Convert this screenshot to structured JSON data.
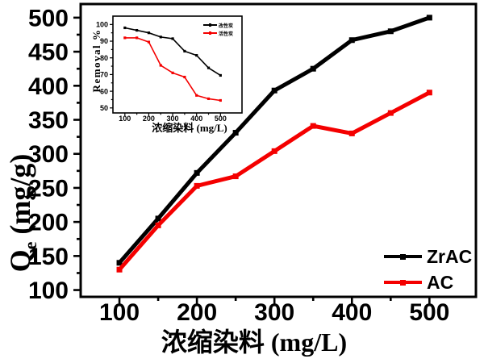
{
  "figure": {
    "background": "#ffffff",
    "accent_black": "#000000",
    "accent_red": "#f40000"
  },
  "chart_data": [
    {
      "id": "main",
      "type": "line",
      "xlabel": "浓缩染料 (mg/L)",
      "ylabel": "Qe (mg/g)",
      "ylabel_parts": {
        "base": "Q",
        "sub": "e",
        "unit": " (mg/g)"
      },
      "x": [
        100,
        150,
        200,
        250,
        300,
        350,
        400,
        450,
        500
      ],
      "x_ticks": [
        100,
        200,
        300,
        400,
        500
      ],
      "y_ticks": [
        100,
        150,
        200,
        250,
        300,
        350,
        400,
        450,
        500
      ],
      "xlim": [
        50,
        560
      ],
      "ylim": [
        90,
        520
      ],
      "grid": false,
      "legend_position": "lower-right",
      "series": [
        {
          "name": "ZrAC",
          "color": "#000000",
          "values": [
            140,
            205,
            272,
            331,
            393,
            425,
            467,
            480,
            500
          ]
        },
        {
          "name": "AC",
          "color": "#f40000",
          "values": [
            130,
            195,
            253,
            267,
            304,
            341,
            330,
            360,
            390
          ]
        }
      ]
    },
    {
      "id": "inset",
      "type": "line",
      "xlabel": "浓缩染料 (mg/L)",
      "ylabel": "Removal %",
      "x": [
        100,
        150,
        200,
        250,
        300,
        350,
        400,
        450,
        500
      ],
      "x_ticks": [
        100,
        200,
        300,
        400,
        500
      ],
      "y_ticks": [
        50,
        60,
        70,
        80,
        90,
        100
      ],
      "xlim": [
        50,
        590
      ],
      "ylim": [
        47,
        105
      ],
      "grid": false,
      "legend_position": "upper-right",
      "series": [
        {
          "name": "改性炭",
          "color": "#000000",
          "values": [
            98,
            96.5,
            95,
            92.5,
            91.5,
            84,
            81.5,
            74,
            69.5
          ]
        },
        {
          "name": "活性炭",
          "color": "#f40000",
          "values": [
            92,
            92,
            89.5,
            75.5,
            71,
            68.5,
            57.5,
            55.5,
            54.5
          ]
        }
      ]
    }
  ]
}
